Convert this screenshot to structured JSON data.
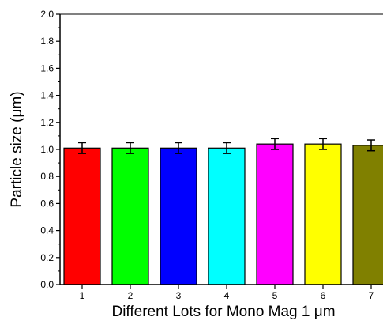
{
  "chart_data": {
    "type": "bar",
    "title": "",
    "xlabel": "Different Lots for Mono Mag 1 μm",
    "ylabel": "Particle size (μm)",
    "ylim": [
      0.0,
      2.0
    ],
    "y_ticks": [
      "0.0",
      "0.2",
      "0.4",
      "0.6",
      "0.8",
      "1.0",
      "1.2",
      "1.4",
      "1.6",
      "1.8",
      "2.0"
    ],
    "categories": [
      "1",
      "2",
      "3",
      "4",
      "5",
      "6",
      "7"
    ],
    "values": [
      1.01,
      1.01,
      1.01,
      1.01,
      1.04,
      1.04,
      1.03
    ],
    "errors": [
      0.04,
      0.04,
      0.04,
      0.04,
      0.04,
      0.04,
      0.04
    ],
    "colors": [
      "#ff0000",
      "#00ff00",
      "#0000ff",
      "#00ffff",
      "#ff00ff",
      "#ffff00",
      "#808000"
    ],
    "grid": false,
    "legend": "none"
  }
}
